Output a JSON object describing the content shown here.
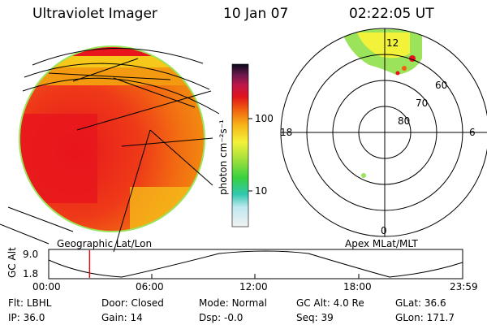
{
  "header": {
    "instrument": "Ultraviolet Imager",
    "date": "10 Jan 07",
    "time": "02:22:05 UT"
  },
  "colorbar": {
    "unit_label": "photon cm⁻²s⁻¹",
    "ticks": [
      "100",
      "10"
    ]
  },
  "polar_plot": {
    "mlt_labels": {
      "top": "12",
      "left": "18",
      "right": "6",
      "bottom": "0"
    },
    "lat_labels": [
      "60",
      "70",
      "80"
    ]
  },
  "timeline": {
    "left_caption": "Geographic Lat/Lon",
    "right_caption": "Apex MLat/MLT",
    "axis_title": "GC Alt",
    "y_ticks": [
      "9.0",
      "1.8"
    ],
    "x_ticks": [
      "00:00",
      "06:00",
      "12:00",
      "18:00",
      "23:59"
    ],
    "current_time_hours": 2.37
  },
  "status": {
    "row1": [
      {
        "label": "Flt:",
        "value": "LBHL"
      },
      {
        "label": "Door:",
        "value": "Closed"
      },
      {
        "label": "Mode:",
        "value": "Normal"
      },
      {
        "label": "GC Alt:",
        "value": "4.0 Re"
      },
      {
        "label": "GLat:",
        "value": "36.6"
      }
    ],
    "row2": [
      {
        "label": "IP:",
        "value": "36.0"
      },
      {
        "label": "Gain:",
        "value": "14"
      },
      {
        "label": "Dsp:",
        "value": "-0.0"
      },
      {
        "label": "Seq:",
        "value": "39"
      },
      {
        "label": "GLon:",
        "value": "171.7"
      }
    ]
  },
  "colors": {
    "disk_orange": "#f25e12",
    "disk_red": "#e8161c",
    "aurora_green": "#9ae35a",
    "aurora_yellow": "#f3f23a",
    "timeline_marker": "#e01010"
  }
}
